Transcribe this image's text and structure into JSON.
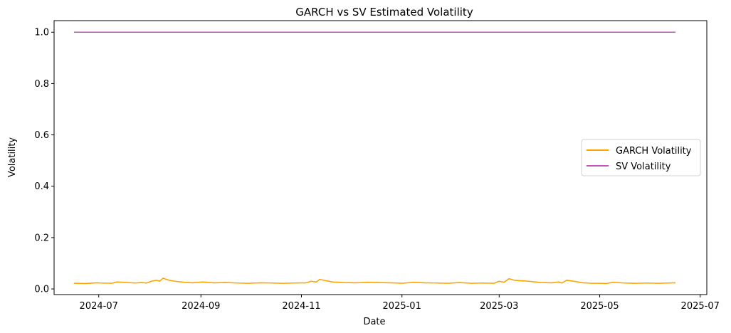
{
  "chart_data": {
    "type": "line",
    "title": "GARCH vs SV Estimated Volatility",
    "xlabel": "Date",
    "ylabel": "Volatility",
    "x_range": [
      "2024-06-16",
      "2025-06-16"
    ],
    "ylim": [
      -0.022,
      1.045
    ],
    "x_ticks": [
      "2024-07",
      "2024-09",
      "2024-11",
      "2025-01",
      "2025-03",
      "2025-05",
      "2025-07"
    ],
    "y_ticks": [
      "0.0",
      "0.2",
      "0.4",
      "0.6",
      "0.8",
      "1.0"
    ],
    "grid": false,
    "legend_position": "center-right",
    "series": [
      {
        "name": "GARCH Volatility",
        "color": "#ffa500",
        "x": [
          "2024-06-16",
          "2024-06-23",
          "2024-06-30",
          "2024-07-02",
          "2024-07-09",
          "2024-07-12",
          "2024-07-16",
          "2024-07-23",
          "2024-07-27",
          "2024-07-30",
          "2024-08-02",
          "2024-08-05",
          "2024-08-07",
          "2024-08-09",
          "2024-08-12",
          "2024-08-16",
          "2024-08-22",
          "2024-08-27",
          "2024-09-02",
          "2024-09-09",
          "2024-09-16",
          "2024-09-23",
          "2024-09-30",
          "2024-10-07",
          "2024-10-14",
          "2024-10-21",
          "2024-10-28",
          "2024-11-04",
          "2024-11-07",
          "2024-11-10",
          "2024-11-12",
          "2024-11-15",
          "2024-11-20",
          "2024-11-27",
          "2024-12-04",
          "2024-12-11",
          "2024-12-18",
          "2024-12-25",
          "2025-01-01",
          "2025-01-08",
          "2025-01-15",
          "2025-01-22",
          "2025-01-29",
          "2025-02-05",
          "2025-02-12",
          "2025-02-19",
          "2025-02-26",
          "2025-03-01",
          "2025-03-04",
          "2025-03-07",
          "2025-03-10",
          "2025-03-14",
          "2025-03-19",
          "2025-03-26",
          "2025-04-02",
          "2025-04-06",
          "2025-04-08",
          "2025-04-11",
          "2025-04-16",
          "2025-04-21",
          "2025-04-26",
          "2025-05-01",
          "2025-05-05",
          "2025-05-09",
          "2025-05-16",
          "2025-05-23",
          "2025-05-30",
          "2025-06-06",
          "2025-06-16"
        ],
        "values": [
          0.022,
          0.021,
          0.024,
          0.023,
          0.022,
          0.027,
          0.026,
          0.023,
          0.025,
          0.023,
          0.03,
          0.034,
          0.03,
          0.042,
          0.035,
          0.03,
          0.026,
          0.024,
          0.027,
          0.024,
          0.025,
          0.023,
          0.022,
          0.024,
          0.023,
          0.022,
          0.023,
          0.024,
          0.03,
          0.027,
          0.037,
          0.033,
          0.027,
          0.025,
          0.024,
          0.026,
          0.025,
          0.024,
          0.022,
          0.026,
          0.024,
          0.023,
          0.022,
          0.025,
          0.022,
          0.023,
          0.022,
          0.03,
          0.026,
          0.04,
          0.034,
          0.032,
          0.03,
          0.025,
          0.024,
          0.027,
          0.023,
          0.034,
          0.029,
          0.024,
          0.022,
          0.022,
          0.021,
          0.026,
          0.023,
          0.022,
          0.023,
          0.022,
          0.024
        ]
      },
      {
        "name": "SV Volatility",
        "color": "#bb55bb",
        "x": [
          "2024-06-16",
          "2025-06-16"
        ],
        "values": [
          1.0,
          1.0
        ]
      }
    ]
  }
}
